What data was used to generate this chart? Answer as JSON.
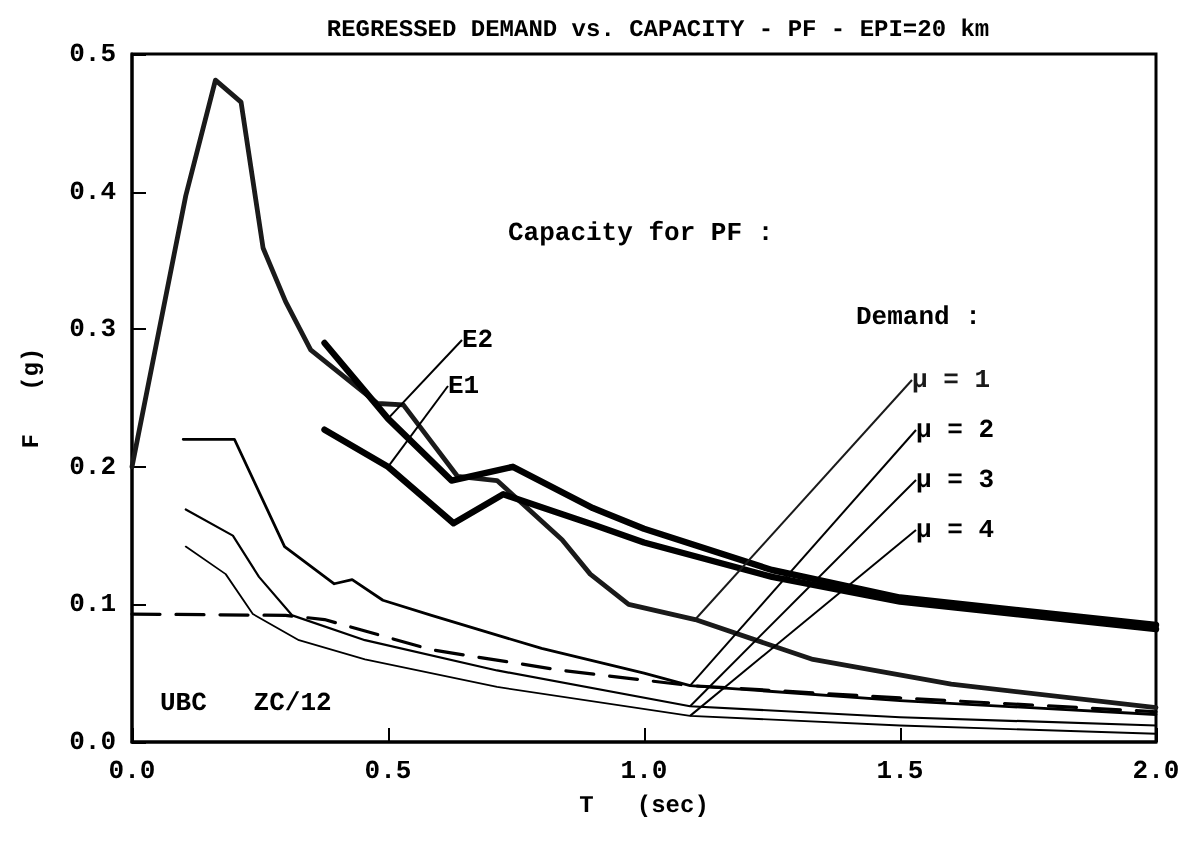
{
  "chart_data": {
    "type": "line",
    "title": "REGRESSED DEMAND vs. CAPACITY - PF - EPI=20 km",
    "xlabel": "T   (sec)",
    "ylabel": "F   (g)",
    "annotations": [
      "Capacity for PF :",
      "Demand :",
      "UBC   ZC/12"
    ],
    "xlim": [
      0,
      2
    ],
    "xticks": [
      {
        "value": 0,
        "label": "0.0"
      },
      {
        "value": 0.5,
        "label": "0.5"
      },
      {
        "value": 1,
        "label": "1.0"
      },
      {
        "value": 1.5,
        "label": "1.5"
      },
      {
        "value": 2,
        "label": "2.0"
      }
    ],
    "ylim": [
      0,
      0.5
    ],
    "yticks": [
      {
        "value": 0,
        "label": "0.0"
      },
      {
        "value": 0.1,
        "label": "0.1"
      },
      {
        "value": 0.2,
        "label": "0.2"
      },
      {
        "value": 0.3,
        "label": "0.3"
      },
      {
        "value": 0.4,
        "label": "0.4"
      },
      {
        "value": 0.5,
        "label": "0.5"
      }
    ],
    "grid": false,
    "legend": false,
    "marker": "none",
    "series": [
      {
        "name": "μ = 1",
        "color": "#1a1a1a",
        "x": [
          0,
          0.105,
          0.163,
          0.213,
          0.256,
          0.3,
          0.349,
          0.48,
          0.53,
          0.636,
          0.713,
          0.84,
          0.895,
          0.97,
          1.1,
          1.33,
          1.6,
          2.0
        ],
        "values": [
          0.2,
          0.397,
          0.481,
          0.465,
          0.359,
          0.32,
          0.285,
          0.246,
          0.245,
          0.193,
          0.19,
          0.147,
          0.122,
          0.1,
          0.089,
          0.06,
          0.042,
          0.025
        ]
      },
      {
        "name": "μ = 2",
        "color": "#000000",
        "x": [
          0.1,
          0.2,
          0.298,
          0.395,
          0.43,
          0.49,
          0.585,
          0.8,
          1.0,
          1.09,
          1.5,
          2.0
        ],
        "values": [
          0.22,
          0.22,
          0.142,
          0.115,
          0.118,
          0.103,
          0.092,
          0.068,
          0.05,
          0.041,
          0.03,
          0.02
        ]
      },
      {
        "name": "μ = 3",
        "color": "#000000",
        "x": [
          0.105,
          0.197,
          0.248,
          0.313,
          0.455,
          0.713,
          1.09,
          1.5,
          2.0
        ],
        "values": [
          0.169,
          0.15,
          0.12,
          0.092,
          0.074,
          0.052,
          0.026,
          0.018,
          0.012
        ]
      },
      {
        "name": "μ = 4",
        "color": "#000000",
        "x": [
          0.105,
          0.183,
          0.236,
          0.326,
          0.455,
          0.713,
          1.09,
          1.5,
          2.0
        ],
        "values": [
          0.142,
          0.122,
          0.093,
          0.074,
          0.06,
          0.04,
          0.019,
          0.012,
          0.006
        ]
      },
      {
        "name": "E1",
        "color": "#000000",
        "x": [
          0.376,
          0.5,
          0.628,
          0.725,
          0.9,
          1.0,
          1.25,
          1.5,
          2.0
        ],
        "values": [
          0.227,
          0.2,
          0.159,
          0.18,
          0.158,
          0.145,
          0.12,
          0.102,
          0.082
        ]
      },
      {
        "name": "E2",
        "color": "#000000",
        "x": [
          0.376,
          0.5,
          0.624,
          0.744,
          0.9,
          1.0,
          1.25,
          1.5,
          2.0
        ],
        "values": [
          0.29,
          0.235,
          0.19,
          0.2,
          0.17,
          0.155,
          0.125,
          0.105,
          0.085
        ]
      },
      {
        "color": "#000000",
        "line_style": "dashed",
        "x": [
          0,
          0.3,
          0.376,
          0.585,
          0.84,
          1.09,
          1.5,
          2.0
        ],
        "values": [
          0.093,
          0.092,
          0.089,
          0.067,
          0.052,
          0.041,
          0.032,
          0.022
        ]
      }
    ]
  }
}
